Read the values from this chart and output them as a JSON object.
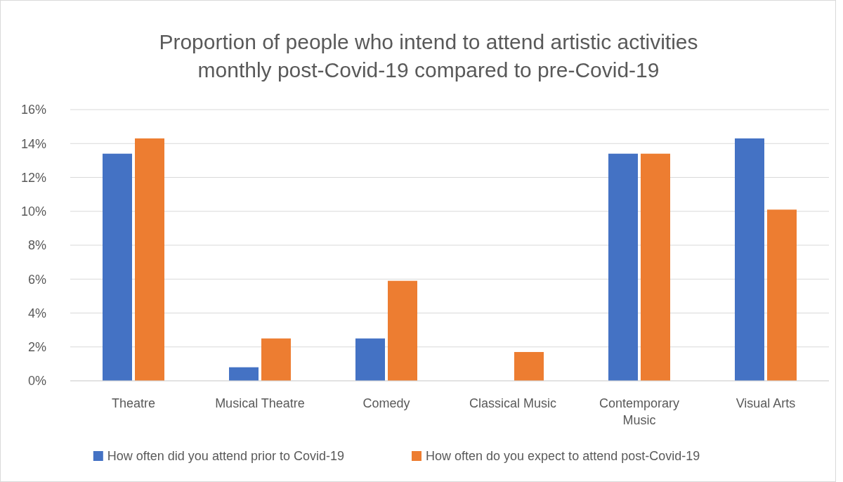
{
  "chart_data": {
    "type": "bar",
    "title": "Proportion of people who intend to attend artistic activities monthly post-Covid-19 compared to pre-Covid-19",
    "categories": [
      "Theatre",
      "Musical Theatre",
      "Comedy",
      "Classical Music",
      "Contemporary Music",
      "Visual Arts"
    ],
    "series": [
      {
        "name": "How often did you attend prior to Covid-19",
        "color": "#4472c4",
        "values": [
          13.4,
          0.8,
          2.5,
          0,
          13.4,
          14.3
        ]
      },
      {
        "name": "How often do you expect to attend post-Covid-19",
        "color": "#ed7d31",
        "values": [
          14.3,
          2.5,
          5.9,
          1.7,
          13.4,
          10.1
        ]
      }
    ],
    "ylim": [
      0,
      16
    ],
    "yticks": [
      {
        "value": 0,
        "label": "0%"
      },
      {
        "value": 2,
        "label": "2%"
      },
      {
        "value": 4,
        "label": "4%"
      },
      {
        "value": 6,
        "label": "6%"
      },
      {
        "value": 8,
        "label": "8%"
      },
      {
        "value": 10,
        "label": "10%"
      },
      {
        "value": 12,
        "label": "12%"
      },
      {
        "value": 14,
        "label": "14%"
      },
      {
        "value": 16,
        "label": "16%"
      }
    ],
    "grid": "y",
    "legend": "bottom"
  }
}
